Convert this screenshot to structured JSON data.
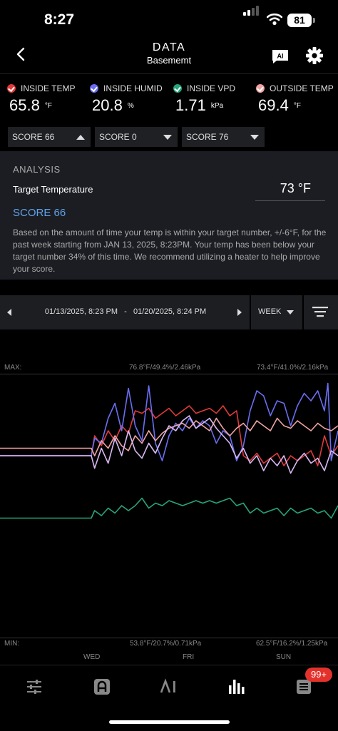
{
  "status": {
    "time": "8:27",
    "battery": "81"
  },
  "nav": {
    "title": "DATA",
    "subtitle": "Basememt"
  },
  "metrics": [
    {
      "label": "INSIDE TEMP",
      "value": "65.8",
      "unit": "°F",
      "color": "#e03a3a"
    },
    {
      "label": "INSIDE HUMID",
      "value": "20.8",
      "unit": "%",
      "color": "#6a6ef2"
    },
    {
      "label": "INSIDE VPD",
      "value": "1.71",
      "unit": "kPa",
      "color": "#27a57a"
    },
    {
      "label": "OUTSIDE TEMP",
      "value": "69.4",
      "unit": "°F",
      "color": "#f0a3a3"
    }
  ],
  "scores": [
    {
      "label": "SCORE 66",
      "caret": "up"
    },
    {
      "label": "SCORE 0",
      "caret": "down"
    },
    {
      "label": "SCORE 76",
      "caret": "down"
    }
  ],
  "analysis": {
    "label": "ANALYSIS",
    "target_label": "Target Temperature",
    "target_value": "73 °F",
    "score": "SCORE 66",
    "description": "Based on the amount of time your temp is within your target number, +/-6°F, for the past week starting from JAN 13, 2025, 8:23PM. Your temp has been below your target number 34% of this time. We recommend utilizing a heater to help improve your score."
  },
  "range": {
    "text": "01/13/2025, 8:23 PM   -   01/20/2025, 8:24 PM",
    "period": "WEEK"
  },
  "chart_data": {
    "type": "line",
    "max_label": "MAX:",
    "min_label": "MIN:",
    "max_values": [
      "76.8°F/49.4%/2.46kPa",
      "73.4°F/41.0%/2.16kPa"
    ],
    "min_values": [
      "53.8°F/20.7%/0.71kPa",
      "62.5°F/16.2%/1.25kPa"
    ],
    "x_labels": [
      "WED",
      "FRI",
      "SUN"
    ],
    "series": [
      {
        "key": "inside_temp",
        "color": "#e03a3a",
        "values": [
          [
            0,
            0.3
          ],
          [
            0.27,
            0.3
          ],
          [
            0.28,
            0.22
          ],
          [
            0.3,
            0.26
          ],
          [
            0.32,
            0.2
          ],
          [
            0.34,
            0.24
          ],
          [
            0.36,
            0.18
          ],
          [
            0.38,
            0.21
          ],
          [
            0.4,
            0.12
          ],
          [
            0.42,
            0.13
          ],
          [
            0.44,
            0.11
          ],
          [
            0.46,
            0.15
          ],
          [
            0.48,
            0.13
          ],
          [
            0.5,
            0.11
          ],
          [
            0.52,
            0.14
          ],
          [
            0.54,
            0.12
          ],
          [
            0.56,
            0.1
          ],
          [
            0.58,
            0.13
          ],
          [
            0.6,
            0.12
          ],
          [
            0.62,
            0.11
          ],
          [
            0.64,
            0.13
          ],
          [
            0.66,
            0.1
          ],
          [
            0.68,
            0.14
          ],
          [
            0.7,
            0.12
          ],
          [
            0.72,
            0.3
          ],
          [
            0.74,
            0.32
          ],
          [
            0.76,
            0.29
          ],
          [
            0.78,
            0.33
          ],
          [
            0.8,
            0.31
          ],
          [
            0.82,
            0.29
          ],
          [
            0.84,
            0.34
          ],
          [
            0.86,
            0.3
          ],
          [
            0.88,
            0.32
          ],
          [
            0.9,
            0.3
          ],
          [
            0.92,
            0.28
          ],
          [
            0.94,
            0.34
          ],
          [
            0.96,
            0.22
          ],
          [
            0.98,
            0.3
          ],
          [
            1.0,
            0.26
          ]
        ]
      },
      {
        "key": "inside_humid",
        "color": "#6a6ef2",
        "values": [
          [
            0,
            0.3
          ],
          [
            0.27,
            0.3
          ],
          [
            0.28,
            0.23
          ],
          [
            0.3,
            0.25
          ],
          [
            0.32,
            0.15
          ],
          [
            0.34,
            0.09
          ],
          [
            0.36,
            0.2
          ],
          [
            0.38,
            0.03
          ],
          [
            0.4,
            0.18
          ],
          [
            0.42,
            0.24
          ],
          [
            0.44,
            0.02
          ],
          [
            0.46,
            0.25
          ],
          [
            0.48,
            0.32
          ],
          [
            0.5,
            0.22
          ],
          [
            0.52,
            0.17
          ],
          [
            0.54,
            0.2
          ],
          [
            0.56,
            0.15
          ],
          [
            0.58,
            0.19
          ],
          [
            0.6,
            0.16
          ],
          [
            0.62,
            0.18
          ],
          [
            0.64,
            0.25
          ],
          [
            0.66,
            0.2
          ],
          [
            0.68,
            0.22
          ],
          [
            0.7,
            0.32
          ],
          [
            0.72,
            0.26
          ],
          [
            0.74,
            0.12
          ],
          [
            0.76,
            0.04
          ],
          [
            0.78,
            0.06
          ],
          [
            0.8,
            0.14
          ],
          [
            0.82,
            0.08
          ],
          [
            0.84,
            0.09
          ],
          [
            0.86,
            0.18
          ],
          [
            0.88,
            0.1
          ],
          [
            0.9,
            0.05
          ],
          [
            0.92,
            0.08
          ],
          [
            0.94,
            0.04
          ],
          [
            0.96,
            0.12
          ],
          [
            0.97,
            0.01
          ],
          [
            0.98,
            0.32
          ],
          [
            1.0,
            0.2
          ]
        ]
      },
      {
        "key": "inside_vpd",
        "color": "#27a57a",
        "values": [
          [
            0,
            0.55
          ],
          [
            0.27,
            0.55
          ],
          [
            0.28,
            0.52
          ],
          [
            0.3,
            0.54
          ],
          [
            0.32,
            0.51
          ],
          [
            0.34,
            0.53
          ],
          [
            0.36,
            0.5
          ],
          [
            0.38,
            0.52
          ],
          [
            0.4,
            0.5
          ],
          [
            0.42,
            0.47
          ],
          [
            0.44,
            0.51
          ],
          [
            0.46,
            0.49
          ],
          [
            0.48,
            0.5
          ],
          [
            0.5,
            0.48
          ],
          [
            0.52,
            0.49
          ],
          [
            0.54,
            0.5
          ],
          [
            0.56,
            0.49
          ],
          [
            0.58,
            0.48
          ],
          [
            0.6,
            0.49
          ],
          [
            0.62,
            0.48
          ],
          [
            0.64,
            0.49
          ],
          [
            0.66,
            0.48
          ],
          [
            0.68,
            0.47
          ],
          [
            0.7,
            0.5
          ],
          [
            0.72,
            0.49
          ],
          [
            0.74,
            0.53
          ],
          [
            0.76,
            0.51
          ],
          [
            0.78,
            0.53
          ],
          [
            0.8,
            0.52
          ],
          [
            0.82,
            0.51
          ],
          [
            0.84,
            0.54
          ],
          [
            0.86,
            0.51
          ],
          [
            0.88,
            0.53
          ],
          [
            0.9,
            0.52
          ],
          [
            0.92,
            0.51
          ],
          [
            0.94,
            0.53
          ],
          [
            0.96,
            0.52
          ],
          [
            0.98,
            0.55
          ],
          [
            1.0,
            0.5
          ]
        ]
      },
      {
        "key": "outside_temp",
        "color": "#f0a3a3",
        "values": [
          [
            0,
            0.27
          ],
          [
            0.27,
            0.27
          ],
          [
            0.28,
            0.3
          ],
          [
            0.3,
            0.24
          ],
          [
            0.32,
            0.27
          ],
          [
            0.34,
            0.22
          ],
          [
            0.36,
            0.26
          ],
          [
            0.38,
            0.28
          ],
          [
            0.4,
            0.22
          ],
          [
            0.42,
            0.25
          ],
          [
            0.44,
            0.2
          ],
          [
            0.46,
            0.24
          ],
          [
            0.48,
            0.21
          ],
          [
            0.5,
            0.19
          ],
          [
            0.52,
            0.18
          ],
          [
            0.54,
            0.17
          ],
          [
            0.56,
            0.19
          ],
          [
            0.58,
            0.16
          ],
          [
            0.6,
            0.18
          ],
          [
            0.62,
            0.2
          ],
          [
            0.64,
            0.15
          ],
          [
            0.66,
            0.19
          ],
          [
            0.68,
            0.22
          ],
          [
            0.7,
            0.19
          ],
          [
            0.72,
            0.17
          ],
          [
            0.74,
            0.2
          ],
          [
            0.76,
            0.16
          ],
          [
            0.78,
            0.18
          ],
          [
            0.8,
            0.2
          ],
          [
            0.82,
            0.15
          ],
          [
            0.84,
            0.18
          ],
          [
            0.86,
            0.19
          ],
          [
            0.88,
            0.16
          ],
          [
            0.9,
            0.18
          ],
          [
            0.92,
            0.2
          ],
          [
            0.94,
            0.17
          ],
          [
            0.96,
            0.19
          ],
          [
            0.98,
            0.2
          ],
          [
            1.0,
            0.18
          ]
        ]
      },
      {
        "key": "lilac",
        "color": "#d8b8f2",
        "values": [
          [
            0,
            0.3
          ],
          [
            0.27,
            0.3
          ],
          [
            0.28,
            0.35
          ],
          [
            0.3,
            0.27
          ],
          [
            0.32,
            0.33
          ],
          [
            0.34,
            0.23
          ],
          [
            0.36,
            0.3
          ],
          [
            0.38,
            0.2
          ],
          [
            0.4,
            0.28
          ],
          [
            0.42,
            0.31
          ],
          [
            0.44,
            0.25
          ],
          [
            0.46,
            0.29
          ],
          [
            0.48,
            0.23
          ],
          [
            0.5,
            0.18
          ],
          [
            0.52,
            0.2
          ],
          [
            0.54,
            0.16
          ],
          [
            0.56,
            0.14
          ],
          [
            0.58,
            0.19
          ],
          [
            0.6,
            0.17
          ],
          [
            0.62,
            0.15
          ],
          [
            0.64,
            0.19
          ],
          [
            0.66,
            0.22
          ],
          [
            0.68,
            0.25
          ],
          [
            0.7,
            0.31
          ],
          [
            0.72,
            0.27
          ],
          [
            0.74,
            0.33
          ],
          [
            0.76,
            0.3
          ],
          [
            0.78,
            0.36
          ],
          [
            0.8,
            0.31
          ],
          [
            0.82,
            0.34
          ],
          [
            0.84,
            0.3
          ],
          [
            0.86,
            0.37
          ],
          [
            0.88,
            0.32
          ],
          [
            0.9,
            0.29
          ],
          [
            0.92,
            0.33
          ],
          [
            0.94,
            0.31
          ],
          [
            0.96,
            0.36
          ],
          [
            0.98,
            0.28
          ],
          [
            1.0,
            0.3
          ]
        ]
      }
    ]
  },
  "tabs": [
    "controls",
    "auto-mode",
    "ai",
    "data",
    "logs"
  ],
  "badge": "99+"
}
